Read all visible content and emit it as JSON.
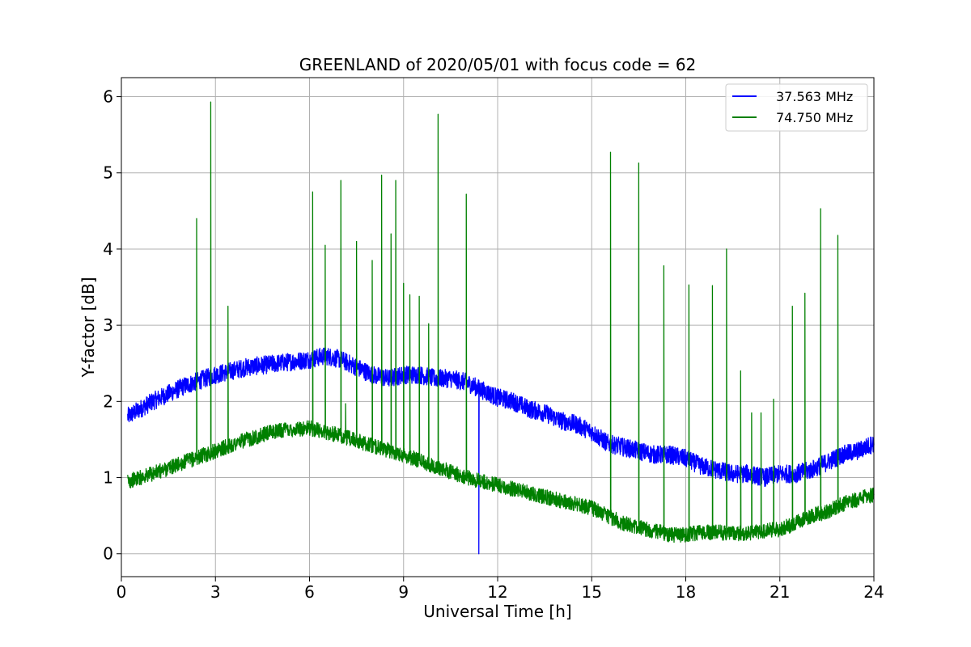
{
  "chart_data": {
    "type": "line",
    "title": "GREENLAND of 2020/05/01 with focus code = 62",
    "xlabel": "Universal Time [h]",
    "ylabel": "Y-factor [dB]",
    "xlim": [
      0,
      24
    ],
    "ylim": [
      -0.3,
      6.25
    ],
    "xticks": [
      0,
      3,
      6,
      9,
      12,
      15,
      18,
      21,
      24
    ],
    "yticks": [
      0,
      1,
      2,
      3,
      4,
      5,
      6
    ],
    "grid": true,
    "legend_position": "top-right",
    "series": [
      {
        "name": "37.563 MHz",
        "color": "#0000ff",
        "baseline": {
          "x": [
            0.2,
            1,
            2,
            3,
            4,
            5,
            6,
            6.5,
            7,
            7.5,
            8,
            8.5,
            9,
            9.5,
            10,
            10.5,
            11,
            11.5,
            12,
            12.5,
            13,
            13.5,
            14,
            14.5,
            15,
            15.5,
            16,
            16.5,
            17,
            17.5,
            18,
            18.5,
            19,
            19.5,
            20,
            20.5,
            21,
            21.5,
            22,
            22.5,
            23,
            23.5,
            24
          ],
          "y": [
            1.8,
            2.0,
            2.2,
            2.35,
            2.45,
            2.5,
            2.55,
            2.6,
            2.55,
            2.45,
            2.35,
            2.3,
            2.35,
            2.35,
            2.3,
            2.3,
            2.25,
            2.15,
            2.05,
            2.0,
            1.9,
            1.85,
            1.75,
            1.7,
            1.6,
            1.45,
            1.4,
            1.35,
            1.3,
            1.3,
            1.25,
            1.15,
            1.1,
            1.05,
            1.05,
            1.0,
            1.05,
            1.05,
            1.1,
            1.2,
            1.3,
            1.35,
            1.45
          ],
          "noise_amplitude": 0.12
        },
        "spikes": [
          {
            "x": 11.4,
            "y": 0.0
          }
        ]
      },
      {
        "name": "74.750 MHz",
        "color": "#008000",
        "baseline": {
          "x": [
            0.2,
            1,
            2,
            3,
            4,
            5,
            6,
            7,
            8,
            9,
            10,
            11,
            12,
            13,
            14,
            15,
            15.5,
            16,
            16.5,
            17,
            17.5,
            18,
            18.5,
            19,
            19.5,
            20,
            20.5,
            21,
            21.5,
            22,
            22.5,
            23,
            23.5,
            24
          ],
          "y": [
            0.95,
            1.05,
            1.2,
            1.35,
            1.5,
            1.62,
            1.65,
            1.55,
            1.42,
            1.3,
            1.15,
            1.0,
            0.9,
            0.8,
            0.7,
            0.6,
            0.5,
            0.4,
            0.35,
            0.3,
            0.25,
            0.25,
            0.28,
            0.28,
            0.27,
            0.27,
            0.3,
            0.32,
            0.4,
            0.5,
            0.55,
            0.65,
            0.72,
            0.78
          ],
          "noise_amplitude": 0.1
        },
        "spikes": [
          {
            "x": 2.4,
            "y": 4.4
          },
          {
            "x": 2.85,
            "y": 5.93
          },
          {
            "x": 3.4,
            "y": 3.25
          },
          {
            "x": 6.1,
            "y": 4.75
          },
          {
            "x": 6.5,
            "y": 4.05
          },
          {
            "x": 7.0,
            "y": 4.9
          },
          {
            "x": 7.15,
            "y": 1.97
          },
          {
            "x": 7.5,
            "y": 4.1
          },
          {
            "x": 8.0,
            "y": 3.85
          },
          {
            "x": 8.3,
            "y": 4.97
          },
          {
            "x": 8.6,
            "y": 4.2
          },
          {
            "x": 8.75,
            "y": 4.9
          },
          {
            "x": 9.0,
            "y": 3.55
          },
          {
            "x": 9.2,
            "y": 3.4
          },
          {
            "x": 9.5,
            "y": 3.38
          },
          {
            "x": 9.8,
            "y": 3.02
          },
          {
            "x": 10.1,
            "y": 5.77
          },
          {
            "x": 11.0,
            "y": 4.72
          },
          {
            "x": 15.6,
            "y": 5.27
          },
          {
            "x": 16.5,
            "y": 5.13
          },
          {
            "x": 17.3,
            "y": 3.78
          },
          {
            "x": 18.1,
            "y": 3.53
          },
          {
            "x": 18.85,
            "y": 3.52
          },
          {
            "x": 19.3,
            "y": 4.0
          },
          {
            "x": 19.75,
            "y": 2.4
          },
          {
            "x": 20.1,
            "y": 1.85
          },
          {
            "x": 20.4,
            "y": 1.85
          },
          {
            "x": 20.8,
            "y": 2.03
          },
          {
            "x": 21.4,
            "y": 3.25
          },
          {
            "x": 21.8,
            "y": 3.42
          },
          {
            "x": 22.3,
            "y": 4.53
          },
          {
            "x": 22.85,
            "y": 4.18
          }
        ]
      }
    ]
  }
}
